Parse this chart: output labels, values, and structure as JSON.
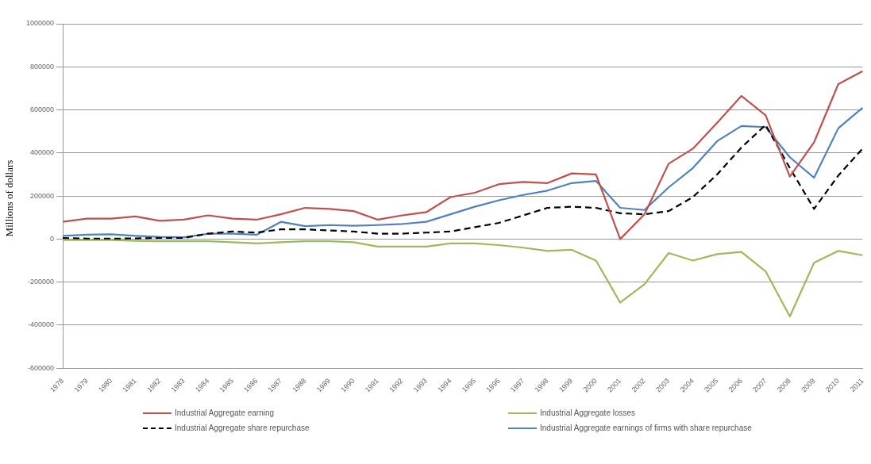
{
  "chart_data": {
    "type": "line",
    "ylabel": "Millions of dollars",
    "categories": [
      "1978",
      "1979",
      "1980",
      "1981",
      "1982",
      "1983",
      "1984",
      "1985",
      "1986",
      "1987",
      "1988",
      "1989",
      "1990",
      "1991",
      "1992",
      "1993",
      "1994",
      "1995",
      "1996",
      "1997",
      "1998",
      "1999",
      "2000",
      "2001",
      "2002",
      "2003",
      "2004",
      "2005",
      "2006",
      "2007",
      "2008",
      "2009",
      "2010",
      "2011"
    ],
    "series": [
      {
        "name": "Industrial Aggregate earning",
        "color": "#c0504d",
        "line_style": "solid",
        "values": [
          80000,
          95000,
          95000,
          105000,
          85000,
          90000,
          110000,
          95000,
          90000,
          115000,
          145000,
          140000,
          130000,
          90000,
          110000,
          125000,
          195000,
          215000,
          255000,
          265000,
          260000,
          305000,
          300000,
          0,
          115000,
          350000,
          420000,
          540000,
          665000,
          575000,
          290000,
          450000,
          720000,
          780000
        ]
      },
      {
        "name": "Industrial Aggregate losses",
        "color": "#9bbb59",
        "line_style": "solid",
        "values": [
          -5000,
          -5000,
          -5000,
          -8000,
          -10000,
          -10000,
          -10000,
          -15000,
          -20000,
          -15000,
          -10000,
          -10000,
          -15000,
          -35000,
          -35000,
          -35000,
          -20000,
          -20000,
          -28000,
          -40000,
          -55000,
          -50000,
          -100000,
          -295000,
          -210000,
          -65000,
          -100000,
          -70000,
          -60000,
          -150000,
          -360000,
          -110000,
          -55000,
          -75000
        ]
      },
      {
        "name": "Industrial Aggregate share repurchase",
        "color": "#000000",
        "line_style": "dashed",
        "values": [
          5000,
          2000,
          2000,
          3000,
          5000,
          5000,
          25000,
          35000,
          30000,
          45000,
          45000,
          40000,
          35000,
          25000,
          25000,
          30000,
          35000,
          55000,
          75000,
          110000,
          145000,
          150000,
          145000,
          120000,
          115000,
          130000,
          195000,
          300000,
          425000,
          530000,
          330000,
          140000,
          295000,
          420000
        ]
      },
      {
        "name": "Industrial Aggregate earnings of firms with share repurchase",
        "color": "#4f81bd",
        "line_style": "solid",
        "values": [
          15000,
          20000,
          22000,
          15000,
          10000,
          8000,
          25000,
          25000,
          20000,
          80000,
          60000,
          65000,
          62000,
          65000,
          70000,
          80000,
          115000,
          150000,
          180000,
          205000,
          225000,
          260000,
          270000,
          145000,
          135000,
          240000,
          330000,
          455000,
          525000,
          520000,
          380000,
          285000,
          515000,
          610000
        ]
      }
    ],
    "ylim": [
      -600000,
      1000000
    ],
    "yticks": [
      -600000,
      -400000,
      -200000,
      0,
      200000,
      400000,
      600000,
      800000,
      1000000
    ],
    "grid": "y",
    "legend": "bottom",
    "marker": "none"
  }
}
